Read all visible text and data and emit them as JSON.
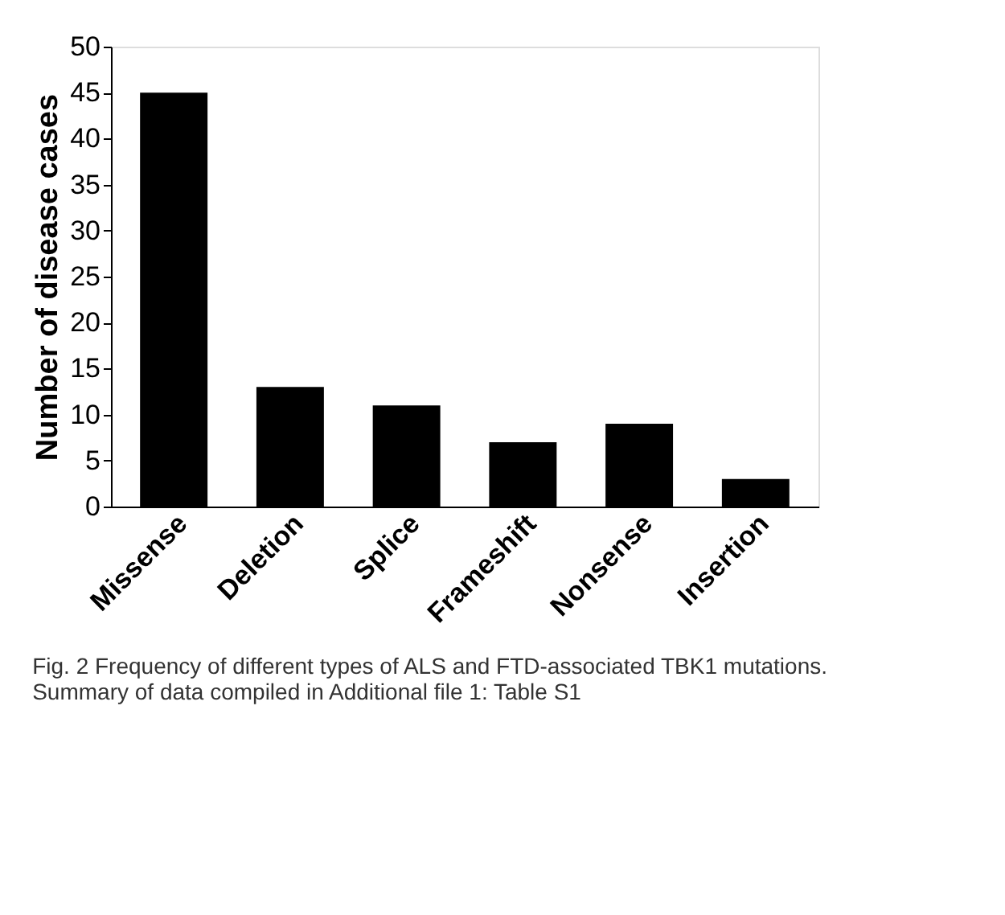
{
  "chart_data": {
    "type": "bar",
    "ylabel": "Number of disease cases",
    "categories": [
      "Missense",
      "Deletion",
      "Splice",
      "Frameshift",
      "Nonsense",
      "Insertion"
    ],
    "values": [
      45,
      13,
      11,
      7,
      9,
      3
    ],
    "color": "#000000",
    "ylim": [
      0,
      50
    ],
    "yticks": [
      0,
      5,
      10,
      15,
      20,
      25,
      30,
      35,
      40,
      45,
      50
    ],
    "grid": false,
    "annotations": [
      "Fig. 2 Frequency of different types of ALS and FTD-associated TBK1 mutations. Summary of data compiled in Additional file 1: Table S1"
    ]
  }
}
